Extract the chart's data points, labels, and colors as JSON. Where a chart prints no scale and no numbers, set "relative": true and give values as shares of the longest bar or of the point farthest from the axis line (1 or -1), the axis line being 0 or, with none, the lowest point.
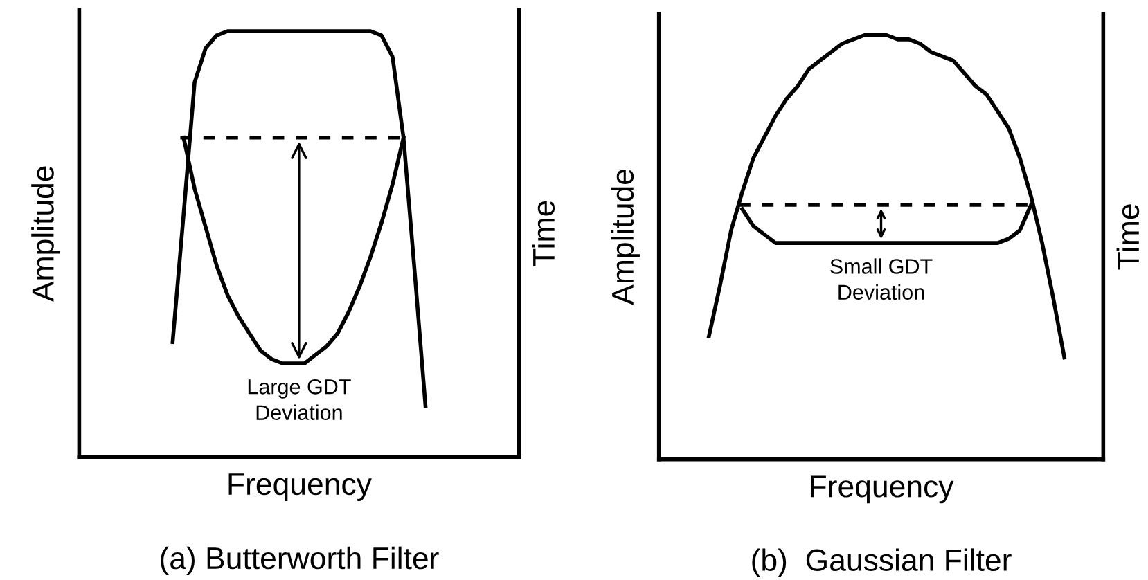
{
  "chart_data": [
    {
      "type": "line",
      "title": "(a) Butterworth Filter",
      "xlabel": "Frequency",
      "ylabel": "Amplitude",
      "y2label": "Time",
      "relative": true,
      "marker": "none",
      "line_style": "solid",
      "categories": [
        null,
        null,
        null,
        null,
        null,
        null,
        null,
        null,
        null,
        null,
        null,
        null,
        null,
        null,
        null,
        null,
        null,
        null,
        null,
        null,
        null,
        null,
        null,
        null,
        null,
        null,
        null,
        null,
        null,
        null,
        null,
        null,
        null,
        null,
        null,
        null,
        null,
        null,
        null,
        null
      ],
      "series": [
        {
          "color": "#000000",
          "values": [
            null,
            null,
            null,
            null,
            null,
            null,
            null,
            null,
            0.27,
            0.57,
            0.88,
            0.96,
            0.99,
            1,
            1,
            1,
            1,
            1,
            1,
            1,
            1,
            1,
            1,
            1,
            1,
            1,
            1,
            0.99,
            0.94,
            0.75,
            0.44,
            0.12,
            null,
            null,
            null,
            null,
            null,
            null,
            null,
            null
          ]
        },
        {
          "color": "#000000",
          "values": [
            null,
            null,
            null,
            null,
            null,
            null,
            null,
            null,
            null,
            0.75,
            0.63,
            0.54,
            0.45,
            0.38,
            0.33,
            0.29,
            0.25,
            0.23,
            0.22,
            0.22,
            0.22,
            0.24,
            0.26,
            0.29,
            0.34,
            0.4,
            0.47,
            0.55,
            0.64,
            0.75,
            null,
            null,
            null,
            null,
            null,
            null,
            null,
            null,
            null,
            null
          ]
        }
      ],
      "ref_lines": [
        {
          "axis": "y",
          "value": 0.75,
          "color": "#000000",
          "line_style": "dashed"
        }
      ],
      "annotations": [
        {
          "text": "Large GDT\nDeviation",
          "y": 0.22
        }
      ]
    },
    {
      "type": "line",
      "title": "(b)  Gaussian Filter",
      "xlabel": "Frequency",
      "ylabel": "Amplitude",
      "y2label": "Time",
      "relative": true,
      "marker": "none",
      "line_style": "solid",
      "categories": [
        null,
        null,
        null,
        null,
        null,
        null,
        null,
        null,
        null,
        null,
        null,
        null,
        null,
        null,
        null,
        null,
        null,
        null,
        null,
        null,
        null,
        null,
        null,
        null,
        null,
        null,
        null,
        null,
        null,
        null,
        null,
        null,
        null,
        null,
        null,
        null,
        null,
        null,
        null,
        null
      ],
      "series": [
        {
          "color": "#000000",
          "values": [
            null,
            null,
            null,
            null,
            0.29,
            0.41,
            0.54,
            0.63,
            0.71,
            0.76,
            0.81,
            0.85,
            0.88,
            0.92,
            0.94,
            0.96,
            0.98,
            0.99,
            1,
            1,
            1,
            0.99,
            0.99,
            0.98,
            0.96,
            0.95,
            0.94,
            0.91,
            0.88,
            0.86,
            0.82,
            0.78,
            0.71,
            0.62,
            0.51,
            0.38,
            0.24,
            null,
            null,
            null
          ]
        },
        {
          "color": "#000000",
          "values": [
            null,
            null,
            null,
            null,
            null,
            null,
            null,
            0.59,
            0.55,
            0.53,
            0.51,
            0.51,
            0.51,
            0.51,
            0.51,
            0.51,
            0.51,
            0.51,
            0.51,
            0.51,
            0.51,
            0.51,
            0.51,
            0.51,
            0.51,
            0.51,
            0.51,
            0.51,
            0.51,
            0.51,
            0.51,
            0.52,
            0.54,
            0.6,
            null,
            null,
            null,
            null,
            null,
            null
          ]
        }
      ],
      "ref_lines": [
        {
          "axis": "y",
          "value": 0.6,
          "color": "#000000",
          "line_style": "dashed"
        }
      ],
      "annotations": [
        {
          "text": "Small GDT\nDeviation",
          "y": 0.51
        }
      ]
    }
  ]
}
